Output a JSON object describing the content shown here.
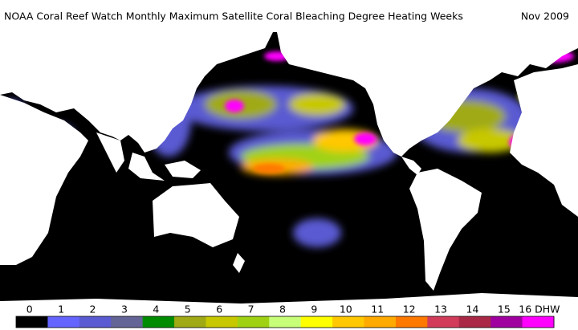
{
  "header": {
    "title": "NOAA Coral Reef Watch Monthly Maximum Satellite Coral Bleaching Degree Heating Weeks",
    "date": "Nov 2009"
  },
  "legend": {
    "items": [
      {
        "label": "0",
        "color": "#000000"
      },
      {
        "label": "1",
        "color": "#6464ff"
      },
      {
        "label": "2",
        "color": "#5a5ad2"
      },
      {
        "label": "3",
        "color": "#646496"
      },
      {
        "label": "4",
        "color": "#008c00"
      },
      {
        "label": "5",
        "color": "#a0aa14"
      },
      {
        "label": "6",
        "color": "#c8c800"
      },
      {
        "label": "7",
        "color": "#a0d214"
      },
      {
        "label": "8",
        "color": "#c8ff78"
      },
      {
        "label": "9",
        "color": "#ffff00"
      },
      {
        "label": "10",
        "color": "#ffc800"
      },
      {
        "label": "11",
        "color": "#ffaa00"
      },
      {
        "label": "12",
        "color": "#ff7800"
      },
      {
        "label": "13",
        "color": "#d23c5a"
      },
      {
        "label": "14",
        "color": "#aa2846"
      },
      {
        "label": "15",
        "color": "#a000a0"
      },
      {
        "label": "16 DHW",
        "color": "#ff00ff"
      }
    ]
  }
}
